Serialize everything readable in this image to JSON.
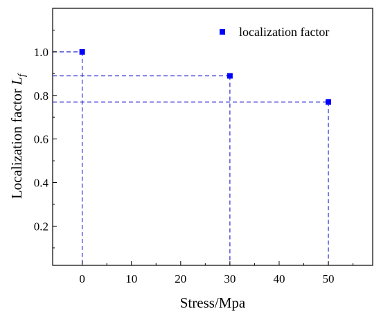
{
  "chart_data": {
    "type": "scatter",
    "xlabel": "Stress/Mpa",
    "ylabel_main": "Localization factor ",
    "ylabel_symbol": "L",
    "ylabel_subscript": "f",
    "xlim": [
      -6,
      59
    ],
    "ylim": [
      0.02,
      1.2
    ],
    "xticks": [
      0,
      10,
      20,
      30,
      40,
      50
    ],
    "xtick_labels": [
      "0",
      "10",
      "20",
      "30",
      "40",
      "50"
    ],
    "yticks": [
      0.2,
      0.4,
      0.6,
      0.8,
      1.0
    ],
    "ytick_labels": [
      "0.2",
      "0.4",
      "0.6",
      "0.8",
      "1.0"
    ],
    "grid": false,
    "legend_position": "top-right",
    "series": [
      {
        "name": "localization factor",
        "color": "#0000ff",
        "marker": "square",
        "x": [
          0,
          30,
          50
        ],
        "y": [
          1.0,
          0.89,
          0.77
        ]
      }
    ],
    "guide_lines": {
      "style": "dashed",
      "color": "#2a2ad0"
    }
  }
}
